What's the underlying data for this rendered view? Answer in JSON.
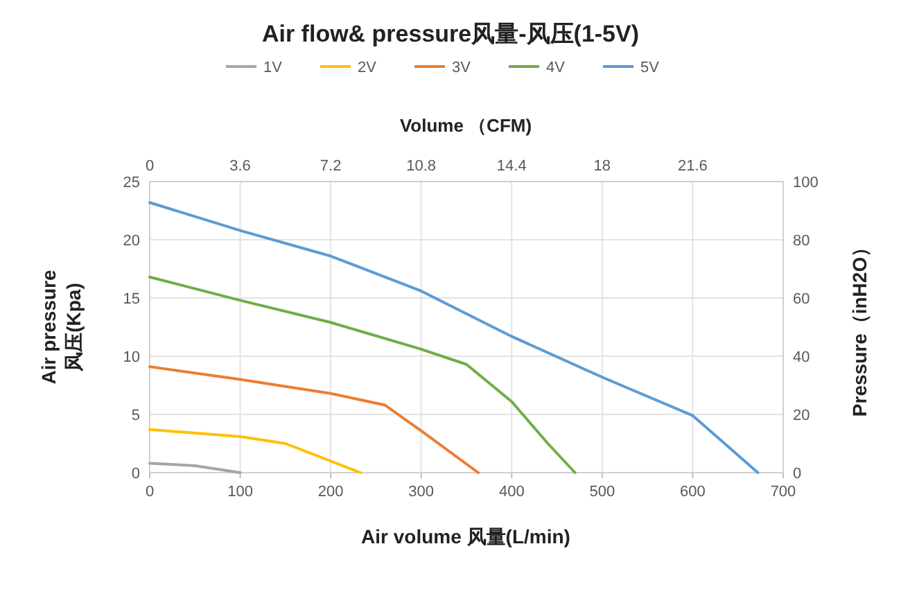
{
  "chart_data": {
    "type": "line",
    "title": "Air flow& pressure风量-风压(1-5V)",
    "xlabel": "Air volume 风量(L/min)",
    "ylabel": "Air pressure\n风压(Kpa)",
    "x2label": "Volume （CFM)",
    "y2label": "Pressure（inH2O）",
    "xlim": [
      0,
      700
    ],
    "xticks": [
      0,
      100,
      200,
      300,
      400,
      500,
      600,
      700
    ],
    "ylim": [
      0,
      25
    ],
    "yticks": [
      0,
      5,
      10,
      15,
      20,
      25
    ],
    "x2lim": [
      0,
      25.2
    ],
    "x2ticks": [
      0,
      3.6,
      7.2,
      10.8,
      14.4,
      18,
      21.6
    ],
    "y2lim": [
      0,
      100
    ],
    "y2ticks": [
      0,
      20,
      40,
      60,
      80,
      100
    ],
    "grid": true,
    "legend": "top",
    "line_style": "solid",
    "series": [
      {
        "name": "1V",
        "color": "#a5a5a5",
        "x": [
          0,
          50,
          100
        ],
        "values": [
          0.8,
          0.6,
          0
        ]
      },
      {
        "name": "2V",
        "color": "#ffc000",
        "x": [
          0,
          100,
          150,
          233
        ],
        "values": [
          3.7,
          3.1,
          2.5,
          0
        ]
      },
      {
        "name": "3V",
        "color": "#ed7d31",
        "x": [
          0,
          100,
          200,
          260,
          300,
          363
        ],
        "values": [
          9.1,
          8.0,
          6.8,
          5.8,
          3.6,
          0
        ]
      },
      {
        "name": "4V",
        "color": "#70ad47",
        "x": [
          0,
          100,
          200,
          300,
          350,
          400,
          440,
          470
        ],
        "values": [
          16.8,
          14.8,
          12.9,
          10.6,
          9.3,
          6.1,
          2.5,
          0
        ]
      },
      {
        "name": "5V",
        "color": "#5b9bd5",
        "x": [
          0,
          100,
          200,
          300,
          400,
          500,
          600,
          672
        ],
        "values": [
          23.2,
          20.8,
          18.6,
          15.6,
          11.7,
          8.2,
          4.9,
          0
        ]
      }
    ]
  }
}
